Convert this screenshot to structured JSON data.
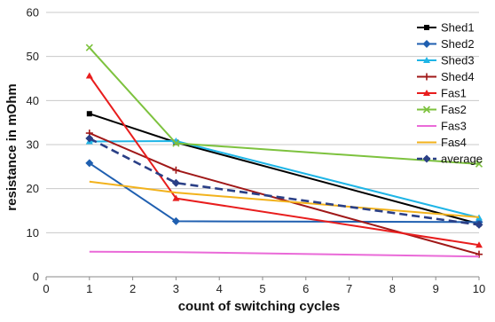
{
  "chart_data": {
    "type": "line",
    "title": "",
    "xlabel": "count of switching cycles",
    "ylabel": "resistance in mOhm",
    "xlim": [
      0,
      10
    ],
    "ylim": [
      0,
      60
    ],
    "x_ticks": [
      0,
      1,
      2,
      3,
      4,
      5,
      6,
      7,
      8,
      9,
      10
    ],
    "y_ticks": [
      0,
      10,
      20,
      30,
      40,
      50,
      60
    ],
    "grid": "horizontal",
    "legend_position": "top-right",
    "x": [
      1,
      3,
      10
    ],
    "series": [
      {
        "name": "Shed1",
        "values": [
          37,
          30.5,
          12
        ],
        "color": "#000000",
        "marker": "square",
        "dash": "solid"
      },
      {
        "name": "Shed2",
        "values": [
          25.8,
          12.6,
          12.4
        ],
        "color": "#1f5fb0",
        "marker": "diamond",
        "dash": "solid"
      },
      {
        "name": "Shed3",
        "values": [
          30.7,
          30.8,
          13.4
        ],
        "color": "#1fb5e6",
        "marker": "triangle",
        "dash": "solid"
      },
      {
        "name": "Shed4",
        "values": [
          32.6,
          24.2,
          5.1
        ],
        "color": "#a01818",
        "marker": "plus",
        "dash": "solid"
      },
      {
        "name": "Fas1",
        "values": [
          45.6,
          17.8,
          7.2
        ],
        "color": "#e81d1d",
        "marker": "triangle",
        "dash": "solid"
      },
      {
        "name": "Fas2",
        "values": [
          52,
          30.3,
          25.6
        ],
        "color": "#7dc23e",
        "marker": "x",
        "dash": "solid"
      },
      {
        "name": "Fas3",
        "values": [
          5.7,
          5.6,
          4.6
        ],
        "color": "#ea6ad8",
        "marker": "none",
        "dash": "solid"
      },
      {
        "name": "Fas4",
        "values": [
          21.6,
          19.1,
          13.5
        ],
        "color": "#f2b21c",
        "marker": "none",
        "dash": "solid"
      },
      {
        "name": "average",
        "values": [
          31.4,
          21.3,
          11.8
        ],
        "color": "#2a3f86",
        "marker": "diamond",
        "dash": "dashed"
      }
    ]
  }
}
